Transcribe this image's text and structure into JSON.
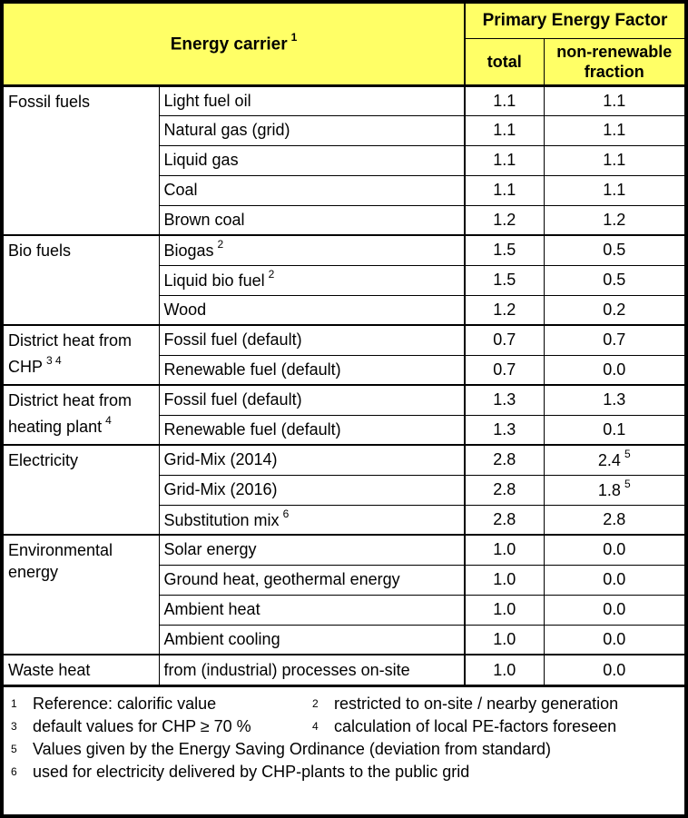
{
  "colors": {
    "header_bg": "#FFFF66",
    "border": "#000000",
    "text": "#000000",
    "background": "#FFFFFF"
  },
  "header": {
    "energy_carrier": "Energy carrier",
    "energy_carrier_sup": "1",
    "primary_energy_factor": "Primary Energy Factor",
    "total": "total",
    "non_renewable": "non-renewable fraction"
  },
  "groups": [
    {
      "category": "Fossil fuels",
      "rows": [
        {
          "carrier": "Light fuel oil",
          "total": "1.1",
          "fraction": "1.1"
        },
        {
          "carrier": "Natural gas (grid)",
          "total": "1.1",
          "fraction": "1.1"
        },
        {
          "carrier": "Liquid gas",
          "total": "1.1",
          "fraction": "1.1"
        },
        {
          "carrier": "Coal",
          "total": "1.1",
          "fraction": "1.1"
        },
        {
          "carrier": "Brown coal",
          "total": "1.2",
          "fraction": "1.2"
        }
      ]
    },
    {
      "category": "Bio fuels",
      "rows": [
        {
          "carrier": "Biogas",
          "carrier_sup": "2",
          "total": "1.5",
          "fraction": "0.5"
        },
        {
          "carrier": "Liquid bio fuel",
          "carrier_sup": "2",
          "total": "1.5",
          "fraction": "0.5"
        },
        {
          "carrier": "Wood",
          "total": "1.2",
          "fraction": "0.2"
        }
      ]
    },
    {
      "category": "District heat from CHP",
      "category_sup": "3 4",
      "rows": [
        {
          "carrier": "Fossil fuel (default)",
          "total": "0.7",
          "fraction": "0.7"
        },
        {
          "carrier": "Renewable fuel (default)",
          "total": "0.7",
          "fraction": "0.0"
        }
      ]
    },
    {
      "category": "District heat from heating plant",
      "category_sup": "4",
      "rows": [
        {
          "carrier": "Fossil fuel (default)",
          "total": "1.3",
          "fraction": "1.3"
        },
        {
          "carrier": "Renewable fuel (default)",
          "total": "1.3",
          "fraction": "0.1"
        }
      ]
    },
    {
      "category": "Electricity",
      "rows": [
        {
          "carrier": "Grid-Mix (2014)",
          "total": "2.8",
          "fraction": "2.4",
          "fraction_sup": "5"
        },
        {
          "carrier": "Grid-Mix (2016)",
          "total": "2.8",
          "fraction": "1.8",
          "fraction_sup": "5"
        },
        {
          "carrier": "Substitution mix",
          "carrier_sup": "6",
          "total": "2.8",
          "fraction": "2.8"
        }
      ]
    },
    {
      "category": "Environmental energy",
      "rows": [
        {
          "carrier": "Solar energy",
          "total": "1.0",
          "fraction": "0.0"
        },
        {
          "carrier": "Ground heat, geothermal energy",
          "total": "1.0",
          "fraction": "0.0"
        },
        {
          "carrier": "Ambient heat",
          "total": "1.0",
          "fraction": "0.0"
        },
        {
          "carrier": "Ambient cooling",
          "total": "1.0",
          "fraction": "0.0"
        }
      ]
    },
    {
      "category": "Waste heat",
      "rows": [
        {
          "carrier": "from (industrial) processes on-site",
          "total": "1.0",
          "fraction": "0.0"
        }
      ]
    }
  ],
  "footnotes": [
    {
      "sup": "1",
      "text": "Reference: calorific value"
    },
    {
      "sup": "2",
      "text": "restricted to on-site / nearby generation"
    },
    {
      "sup": "3",
      "text": "default values for CHP ≥ 70 %"
    },
    {
      "sup": "4",
      "text": "calculation of local PE-factors foreseen"
    },
    {
      "sup": "5",
      "text": "Values given by the Energy Saving Ordinance (deviation from standard)"
    },
    {
      "sup": "6",
      "text": "used for electricity delivered by CHP-plants to the public grid"
    }
  ],
  "chart_data": {
    "type": "table",
    "title": "Primary Energy Factor by Energy carrier",
    "columns": [
      "Energy carrier group",
      "Energy carrier",
      "Primary Energy Factor: total",
      "Primary Energy Factor: non-renewable fraction"
    ],
    "rows": [
      [
        "Fossil fuels",
        "Light fuel oil",
        1.1,
        1.1
      ],
      [
        "Fossil fuels",
        "Natural gas (grid)",
        1.1,
        1.1
      ],
      [
        "Fossil fuels",
        "Liquid gas",
        1.1,
        1.1
      ],
      [
        "Fossil fuels",
        "Coal",
        1.1,
        1.1
      ],
      [
        "Fossil fuels",
        "Brown coal",
        1.2,
        1.2
      ],
      [
        "Bio fuels",
        "Biogas",
        1.5,
        0.5
      ],
      [
        "Bio fuels",
        "Liquid bio fuel",
        1.5,
        0.5
      ],
      [
        "Bio fuels",
        "Wood",
        1.2,
        0.2
      ],
      [
        "District heat from CHP",
        "Fossil fuel (default)",
        0.7,
        0.7
      ],
      [
        "District heat from CHP",
        "Renewable fuel (default)",
        0.7,
        0.0
      ],
      [
        "District heat from heating plant",
        "Fossil fuel (default)",
        1.3,
        1.3
      ],
      [
        "District heat from heating plant",
        "Renewable fuel (default)",
        1.3,
        0.1
      ],
      [
        "Electricity",
        "Grid-Mix (2014)",
        2.8,
        2.4
      ],
      [
        "Electricity",
        "Grid-Mix (2016)",
        2.8,
        1.8
      ],
      [
        "Electricity",
        "Substitution mix",
        2.8,
        2.8
      ],
      [
        "Environmental energy",
        "Solar energy",
        1.0,
        0.0
      ],
      [
        "Environmental energy",
        "Ground heat, geothermal energy",
        1.0,
        0.0
      ],
      [
        "Environmental energy",
        "Ambient heat",
        1.0,
        0.0
      ],
      [
        "Environmental energy",
        "Ambient cooling",
        1.0,
        0.0
      ],
      [
        "Waste heat",
        "from (industrial) processes on-site",
        1.0,
        0.0
      ]
    ]
  }
}
